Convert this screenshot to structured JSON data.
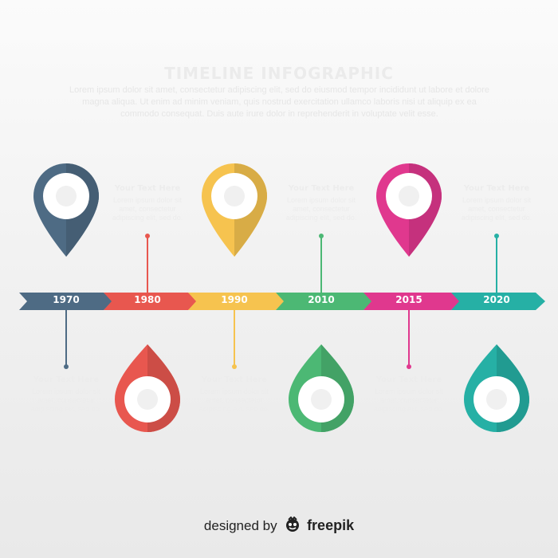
{
  "title": "TIMELINE INFOGRAPHIC",
  "intro": "Lorem ipsum dolor sit amet, consectetur adipiscing elit, sed do eiusmod tempor incididunt ut labore et dolore magna aliqua. Ut enim ad minim veniam, quis nostrud exercitation ullamco laboris nisi ut aliquip ex ea commodo consequat. Duis aute irure dolor in reprehenderit in voluptate velit esse.",
  "steps": [
    {
      "year": "1970",
      "color": "#4e6b84",
      "icon": "bulb-icon",
      "title": "Your Text Here",
      "body": "Lorem ipsum dolor sit amet, consectetur adipiscing elit, sed do."
    },
    {
      "year": "1980",
      "color": "#e8574f",
      "icon": "cloud-icon",
      "title": "Your Text Here",
      "body": "Lorem ipsum dolor sit amet, consectetur adipiscing elit, sed do."
    },
    {
      "year": "1990",
      "color": "#f6c34f",
      "icon": "bulb-icon",
      "title": "Your Text Here",
      "body": "Lorem ipsum dolor sit amet, consectetur adipiscing elit, sed do."
    },
    {
      "year": "2010",
      "color": "#4cb874",
      "icon": "key-icon",
      "title": "Your Text Here",
      "body": "Lorem ipsum dolor sit amet, consectetur adipiscing elit, sed do."
    },
    {
      "year": "2015",
      "color": "#e0388e",
      "icon": "globe-icon",
      "title": "Your Text Here",
      "body": "Lorem ipsum dolor sit amet, consectetur adipiscing elit, sed do."
    },
    {
      "year": "2020",
      "color": "#26b0a5",
      "icon": "gear-icon",
      "title": "Your Text Here",
      "body": "Lorem ipsum dolor sit amet, consectetur adipiscing elit, sed do."
    }
  ],
  "credit": {
    "prefix": "designed by",
    "brand": "freepik",
    "logo_icon": "freepik-logo-icon"
  }
}
